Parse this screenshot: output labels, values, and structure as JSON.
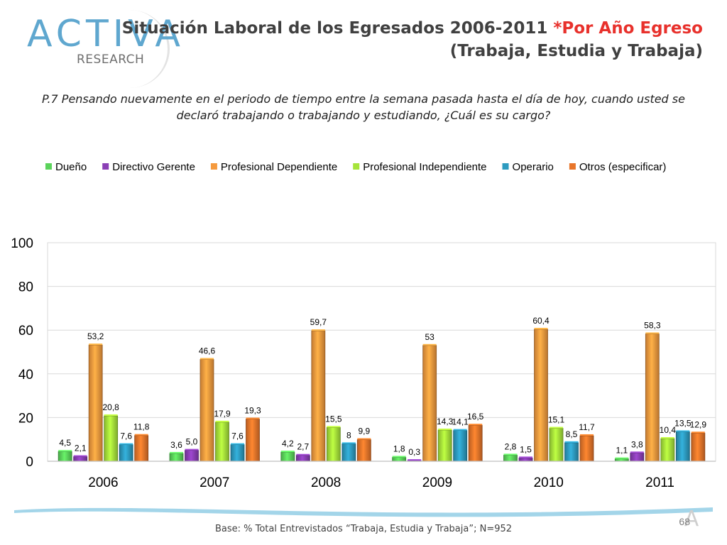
{
  "logo": {
    "main": "ACTIVA",
    "sub": "RESEARCH"
  },
  "header": {
    "title_main": "Situación Laboral de los Egresados 2006-2011 ",
    "title_accent": "*Por Año Egreso",
    "title_line2": "(Trabaja, Estudia y Trabaja)"
  },
  "question": "P.7 Pensando nuevamente en el periodo de tiempo entre la semana pasada hasta el día de hoy, cuando usted se declaró trabajando o trabajando y estudiando, ¿Cuál es su cargo?",
  "footer": {
    "base": "Base: % Total Entrevistados “Trabaja, Estudia y Trabaja”; N=952",
    "page": "68"
  },
  "chart_data": {
    "type": "bar",
    "title": "",
    "xlabel": "",
    "ylabel": "",
    "ylim": [
      0,
      100
    ],
    "yticks": [
      0,
      20,
      40,
      60,
      80,
      100
    ],
    "categories": [
      "2006",
      "2007",
      "2008",
      "2009",
      "2010",
      "2011"
    ],
    "legend_position": "top",
    "series": [
      {
        "name": "Dueño",
        "color": "#5bd35b",
        "values": [
          4.5,
          3.6,
          4.2,
          1.8,
          2.8,
          1.1
        ],
        "labels": [
          "4,5",
          "3,6",
          "4,2",
          "1,8",
          "2,8",
          "1,1"
        ]
      },
      {
        "name": "Directivo Gerente",
        "color": "#8a3fb5",
        "values": [
          2.1,
          5.0,
          2.7,
          0.3,
          1.5,
          3.8
        ],
        "labels": [
          "2,1",
          "5,0",
          "2,7",
          "0,3",
          "1,5",
          "3,8"
        ]
      },
      {
        "name": "Profesional Dependiente",
        "color": "#f59a3e",
        "values": [
          53.2,
          46.6,
          59.7,
          53,
          60.4,
          58.3
        ],
        "labels": [
          "53,2",
          "46,6",
          "59,7",
          "53",
          "60,4",
          "58,3"
        ]
      },
      {
        "name": "Profesional Independiente",
        "color": "#a6e43a",
        "values": [
          20.8,
          17.9,
          15.5,
          14.3,
          15.1,
          10.4
        ],
        "labels": [
          "20,8",
          "17,9",
          "15,5",
          "14,3",
          "15,1",
          "10,4"
        ]
      },
      {
        "name": "Operario",
        "color": "#2d9bc0",
        "values": [
          7.6,
          7.6,
          8,
          14.1,
          8.5,
          13.5
        ],
        "labels": [
          "7,6",
          "7,6",
          "8",
          "14,1",
          "8,5",
          "13,5"
        ]
      },
      {
        "name": "Otros (especificar)",
        "color": "#e8752a",
        "values": [
          11.8,
          19.3,
          9.9,
          16.5,
          11.7,
          12.9
        ],
        "labels": [
          "11,8",
          "19,3",
          "9,9",
          "16,5",
          "11,7",
          "12,9"
        ]
      }
    ]
  }
}
